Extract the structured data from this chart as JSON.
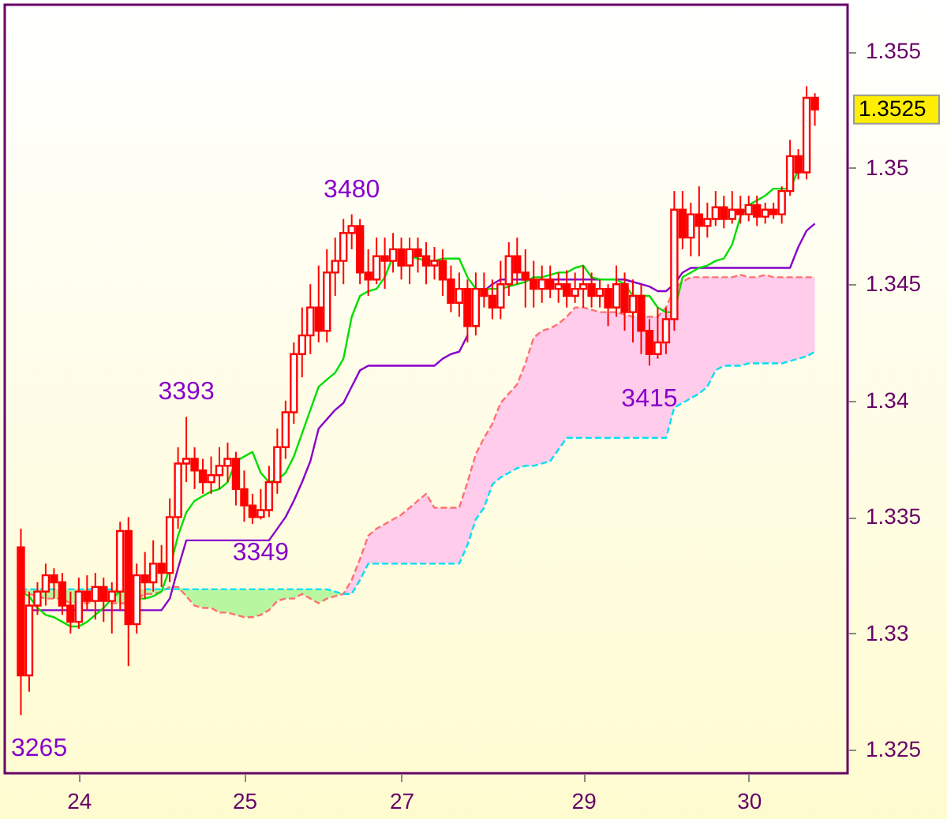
{
  "chart_data": {
    "type": "candlestick",
    "color": "#ff0000",
    "categories": [
      null,
      null,
      null,
      null,
      null,
      null,
      null,
      "24",
      null,
      null,
      null,
      null,
      null,
      null,
      null,
      null,
      null,
      null,
      null,
      null,
      null,
      null,
      null,
      null,
      null,
      null,
      null,
      "25",
      null,
      null,
      null,
      null,
      null,
      null,
      null,
      null,
      null,
      null,
      null,
      null,
      null,
      null,
      null,
      null,
      null,
      null,
      "27",
      null,
      null,
      null,
      null,
      null,
      null,
      null,
      null,
      null,
      null,
      null,
      null,
      null,
      null,
      null,
      null,
      null,
      null,
      null,
      null,
      null,
      "29",
      null,
      null,
      null,
      null,
      null,
      null,
      null,
      null,
      null,
      null,
      null,
      null,
      null,
      null,
      null,
      null,
      null,
      null,
      null,
      "30",
      null,
      null,
      null,
      null,
      null,
      null,
      null,
      null
    ],
    "ohlc": [
      [
        1.3337,
        1.3345,
        1.3265,
        1.3282
      ],
      [
        1.3282,
        1.3318,
        1.3275,
        1.3312
      ],
      [
        1.3312,
        1.3322,
        1.3308,
        1.3318
      ],
      [
        1.3318,
        1.333,
        1.3312,
        1.3325
      ],
      [
        1.3325,
        1.3328,
        1.3315,
        1.3322
      ],
      [
        1.3322,
        1.3326,
        1.3308,
        1.3312
      ],
      [
        1.3312,
        1.3318,
        1.33,
        1.3305
      ],
      [
        1.3305,
        1.3324,
        1.3302,
        1.3318
      ],
      [
        1.3318,
        1.3325,
        1.331,
        1.3314
      ],
      [
        1.3314,
        1.3326,
        1.3306,
        1.332
      ],
      [
        1.332,
        1.3324,
        1.3305,
        1.3314
      ],
      [
        1.3314,
        1.3322,
        1.33,
        1.3318
      ],
      [
        1.3318,
        1.3348,
        1.331,
        1.3344
      ],
      [
        1.3344,
        1.335,
        1.3286,
        1.3304
      ],
      [
        1.3304,
        1.333,
        1.33,
        1.3325
      ],
      [
        1.3325,
        1.3335,
        1.3315,
        1.3322
      ],
      [
        1.3322,
        1.334,
        1.3318,
        1.333
      ],
      [
        1.333,
        1.3338,
        1.332,
        1.3326
      ],
      [
        1.3326,
        1.3358,
        1.3322,
        1.335
      ],
      [
        1.335,
        1.338,
        1.3345,
        1.3373
      ],
      [
        1.3373,
        1.3393,
        1.3365,
        1.3375
      ],
      [
        1.3375,
        1.338,
        1.3362,
        1.337
      ],
      [
        1.337,
        1.3375,
        1.336,
        1.3365
      ],
      [
        1.3365,
        1.3376,
        1.336,
        1.3368
      ],
      [
        1.3368,
        1.338,
        1.3362,
        1.3372
      ],
      [
        1.3372,
        1.3382,
        1.3365,
        1.3375
      ],
      [
        1.3375,
        1.3378,
        1.3355,
        1.3362
      ],
      [
        1.3362,
        1.337,
        1.3348,
        1.3355
      ],
      [
        1.3355,
        1.336,
        1.3347,
        1.335
      ],
      [
        1.335,
        1.3362,
        1.3349,
        1.3353
      ],
      [
        1.3353,
        1.3372,
        1.335,
        1.3365
      ],
      [
        1.3365,
        1.3388,
        1.336,
        1.338
      ],
      [
        1.338,
        1.34,
        1.3375,
        1.3395
      ],
      [
        1.3395,
        1.3425,
        1.339,
        1.342
      ],
      [
        1.342,
        1.344,
        1.341,
        1.3428
      ],
      [
        1.3428,
        1.345,
        1.342,
        1.344
      ],
      [
        1.344,
        1.3458,
        1.3425,
        1.343
      ],
      [
        1.343,
        1.3465,
        1.3425,
        1.3455
      ],
      [
        1.3455,
        1.347,
        1.3445,
        1.346
      ],
      [
        1.346,
        1.3478,
        1.345,
        1.3472
      ],
      [
        1.3472,
        1.348,
        1.3465,
        1.3475
      ],
      [
        1.3475,
        1.3478,
        1.345,
        1.3455
      ],
      [
        1.3455,
        1.3465,
        1.3445,
        1.3452
      ],
      [
        1.3452,
        1.347,
        1.345,
        1.3462
      ],
      [
        1.3462,
        1.347,
        1.3448,
        1.346
      ],
      [
        1.346,
        1.3472,
        1.3455,
        1.3465
      ],
      [
        1.3465,
        1.347,
        1.3452,
        1.3458
      ],
      [
        1.3458,
        1.347,
        1.345,
        1.3465
      ],
      [
        1.3465,
        1.347,
        1.3455,
        1.3462
      ],
      [
        1.3462,
        1.3468,
        1.345,
        1.3458
      ],
      [
        1.3458,
        1.3466,
        1.3452,
        1.346
      ],
      [
        1.346,
        1.3465,
        1.3445,
        1.3452
      ],
      [
        1.3452,
        1.3458,
        1.3438,
        1.3442
      ],
      [
        1.3442,
        1.3455,
        1.3436,
        1.3448
      ],
      [
        1.3448,
        1.3452,
        1.3425,
        1.3432
      ],
      [
        1.3432,
        1.3455,
        1.3428,
        1.3448
      ],
      [
        1.3448,
        1.3455,
        1.344,
        1.3445
      ],
      [
        1.3445,
        1.3452,
        1.3435,
        1.344
      ],
      [
        1.344,
        1.346,
        1.3435,
        1.345
      ],
      [
        1.345,
        1.3468,
        1.3445,
        1.3462
      ],
      [
        1.3462,
        1.347,
        1.345,
        1.3455
      ],
      [
        1.3455,
        1.3465,
        1.344,
        1.3452
      ],
      [
        1.3452,
        1.346,
        1.344,
        1.3448
      ],
      [
        1.3448,
        1.3458,
        1.3442,
        1.3452
      ],
      [
        1.3452,
        1.3458,
        1.3444,
        1.3448
      ],
      [
        1.3448,
        1.3455,
        1.3442,
        1.345
      ],
      [
        1.345,
        1.3456,
        1.344,
        1.3445
      ],
      [
        1.3445,
        1.3455,
        1.3442,
        1.3448
      ],
      [
        1.3448,
        1.3458,
        1.344,
        1.345
      ],
      [
        1.345,
        1.3455,
        1.344,
        1.3445
      ],
      [
        1.3445,
        1.3452,
        1.344,
        1.3448
      ],
      [
        1.3448,
        1.345,
        1.3432,
        1.344
      ],
      [
        1.344,
        1.3458,
        1.3436,
        1.345
      ],
      [
        1.345,
        1.3455,
        1.343,
        1.3438
      ],
      [
        1.3438,
        1.3452,
        1.3425,
        1.3445
      ],
      [
        1.3445,
        1.345,
        1.342,
        1.343
      ],
      [
        1.343,
        1.3435,
        1.3415,
        1.342
      ],
      [
        1.342,
        1.344,
        1.3418,
        1.3425
      ],
      [
        1.3425,
        1.344,
        1.342,
        1.3435
      ],
      [
        1.3435,
        1.349,
        1.343,
        1.3482
      ],
      [
        1.3482,
        1.349,
        1.3465,
        1.347
      ],
      [
        1.347,
        1.3485,
        1.3462,
        1.348
      ],
      [
        1.348,
        1.3492,
        1.3462,
        1.3475
      ],
      [
        1.3475,
        1.3485,
        1.347,
        1.3478
      ],
      [
        1.3478,
        1.349,
        1.3475,
        1.3483
      ],
      [
        1.3483,
        1.3488,
        1.3474,
        1.3478
      ],
      [
        1.3478,
        1.349,
        1.3476,
        1.3482
      ],
      [
        1.3482,
        1.3488,
        1.3476,
        1.348
      ],
      [
        1.348,
        1.3488,
        1.3477,
        1.3484
      ],
      [
        1.3484,
        1.3488,
        1.3475,
        1.3479
      ],
      [
        1.3479,
        1.3485,
        1.3476,
        1.3482
      ],
      [
        1.3482,
        1.3485,
        1.3478,
        1.348
      ],
      [
        1.348,
        1.3492,
        1.3476,
        1.349
      ],
      [
        1.349,
        1.3512,
        1.3488,
        1.3505
      ],
      [
        1.3505,
        1.3508,
        1.3495,
        1.3498
      ],
      [
        1.3498,
        1.3535,
        1.3495,
        1.353
      ],
      [
        1.353,
        1.3532,
        1.3518,
        1.3525
      ]
    ],
    "series": [
      {
        "type": "line",
        "color": "#ff7070",
        "line_style": "dashed",
        "lower": [
          null,
          null,
          null,
          null,
          null,
          null,
          null,
          null,
          null,
          null,
          null,
          null,
          null,
          null,
          null,
          null,
          null,
          null,
          null,
          null,
          null,
          null,
          null,
          null,
          null,
          null,
          null,
          null,
          null,
          null,
          null,
          null,
          null,
          null,
          null,
          null,
          null,
          null,
          null,
          1.3317,
          1.3317,
          1.3323,
          1.333,
          1.333,
          1.333,
          1.333,
          1.333,
          1.333,
          1.333,
          1.333,
          1.333,
          1.333,
          1.333,
          1.333,
          1.3338,
          1.3349,
          1.3354,
          1.3364,
          1.3367,
          1.3369,
          1.3371,
          1.3372,
          1.3372,
          1.3373,
          1.3374,
          1.3379,
          1.3384,
          1.3384,
          1.3384,
          1.3384,
          1.3384,
          1.3384,
          1.3384,
          1.3384,
          1.3384,
          1.3384,
          1.3384,
          1.3384,
          1.3384,
          1.3397,
          1.3399,
          1.3401,
          1.3403,
          1.3406,
          1.3413,
          1.3415,
          1.3415,
          1.3415,
          1.3416,
          1.3416,
          1.3416,
          1.3416,
          1.3416,
          1.3417,
          1.3418,
          1.3419,
          1.3421
        ],
        "upper": [
          null,
          null,
          null,
          null,
          null,
          null,
          null,
          null,
          null,
          null,
          null,
          null,
          null,
          null,
          null,
          null,
          null,
          null,
          null,
          null,
          null,
          null,
          null,
          null,
          null,
          null,
          null,
          null,
          null,
          null,
          null,
          null,
          null,
          null,
          null,
          null,
          null,
          null,
          null,
          1.3317,
          1.3323,
          1.3332,
          1.3342,
          1.3345,
          1.3347,
          1.3349,
          1.3351,
          1.3354,
          1.3357,
          1.336,
          1.3354,
          1.3354,
          1.3354,
          1.3354,
          1.3365,
          1.3377,
          1.3384,
          1.339,
          1.3399,
          1.3403,
          1.3407,
          1.3416,
          1.3427,
          1.343,
          1.3431,
          1.3433,
          1.3436,
          1.344,
          1.344,
          1.3439,
          1.3438,
          1.3438,
          1.3438,
          1.3437,
          1.3436,
          1.3436,
          1.3436,
          1.3436,
          1.344,
          1.3448,
          1.3451,
          1.3453,
          1.3453,
          1.3453,
          1.3453,
          1.3453,
          1.3453,
          1.3454,
          1.3453,
          1.3453,
          1.3454,
          1.3453,
          1.3453,
          1.3453,
          1.3453,
          1.3453,
          1.3453
        ],
        "values": [
          1.3319,
          1.3317,
          1.3316,
          1.3315,
          1.3315,
          1.3315,
          1.3313,
          1.3313,
          1.3313,
          1.3314,
          1.3315,
          1.3313,
          1.3313,
          1.3313,
          1.3315,
          1.3317,
          1.3317,
          1.3318,
          1.332,
          1.332,
          1.3316,
          1.3312,
          1.3311,
          1.3311,
          1.3309,
          1.3309,
          1.3308,
          1.3307,
          1.3307,
          1.3308,
          1.331,
          1.3314,
          1.3315,
          1.3315,
          1.3317,
          1.3315,
          1.3313,
          1.3315,
          1.3316,
          1.3317,
          1.3323,
          1.3332,
          1.3342,
          1.3345,
          1.3347,
          1.3349,
          1.3351,
          1.3354,
          1.3357,
          1.336,
          1.3354,
          1.3354,
          1.3354,
          1.3354,
          1.3365,
          1.3377,
          1.3384,
          1.339,
          1.3399,
          1.3403,
          1.3407,
          1.3416,
          1.3427,
          1.343,
          1.3431,
          1.3433,
          1.3436,
          1.344,
          1.344,
          1.3439,
          1.3438,
          1.3438,
          1.3438,
          1.3437,
          1.3436,
          1.3436,
          1.3436,
          1.3436,
          1.344,
          1.3448,
          1.3451,
          1.3453,
          1.3453,
          1.3453,
          1.3453,
          1.3453,
          1.3453,
          1.3454,
          1.3453,
          1.3453,
          1.3454,
          1.3453,
          1.3453,
          1.3453,
          1.3453,
          1.3453,
          1.3453
        ]
      },
      {
        "type": "line",
        "color": "#00e0f0",
        "line_style": "dashed",
        "upper": [
          1.3319,
          1.3319,
          1.3319,
          1.3319,
          1.3319,
          1.3319,
          1.3319,
          1.3319,
          1.3319,
          1.3319,
          1.3319,
          1.3319,
          1.3319,
          1.3319,
          1.3319,
          1.3319,
          1.3319,
          1.3319,
          1.332,
          1.332,
          1.3319,
          1.3319,
          1.3319,
          1.3319,
          1.3319,
          1.3319,
          1.3319,
          1.3319,
          1.3319,
          1.3319,
          1.3319,
          1.3319,
          1.3319,
          1.3319,
          1.3319,
          1.3319,
          1.3319,
          1.3319,
          1.3318,
          1.3317,
          null,
          null,
          null,
          null,
          null,
          null,
          null,
          null,
          null,
          null,
          null,
          null,
          null,
          null,
          null,
          null,
          null,
          null,
          null,
          null,
          null,
          null,
          null,
          null,
          null,
          null,
          null,
          null,
          null,
          null,
          null,
          null,
          null,
          null,
          null,
          null,
          null,
          null,
          null,
          null,
          null,
          null,
          null,
          null,
          null,
          null,
          null,
          null,
          null,
          null,
          null,
          null,
          null,
          null,
          null,
          null,
          null
        ],
        "lower": [
          1.3319,
          1.3317,
          1.3316,
          1.3315,
          1.3315,
          1.3315,
          1.3313,
          1.3313,
          1.3313,
          1.3314,
          1.3315,
          1.3313,
          1.3313,
          1.3313,
          1.3315,
          1.3317,
          1.3317,
          1.3318,
          1.3319,
          1.3319,
          1.3316,
          1.3312,
          1.3311,
          1.3311,
          1.3309,
          1.3309,
          1.3308,
          1.3307,
          1.3307,
          1.3308,
          1.331,
          1.3314,
          1.3315,
          1.3315,
          1.3317,
          1.3315,
          1.3313,
          1.3315,
          1.3316,
          1.3317,
          null,
          null,
          null,
          null,
          null,
          null,
          null,
          null,
          null,
          null,
          null,
          null,
          null,
          null,
          null,
          null,
          null,
          null,
          null,
          null,
          null,
          null,
          null,
          null,
          null,
          null,
          null,
          null,
          null,
          null,
          null,
          null,
          null,
          null,
          null,
          null,
          null,
          null,
          null,
          null,
          null,
          null,
          null,
          null,
          null,
          null,
          null,
          null,
          null,
          null,
          null,
          null,
          null,
          null,
          null,
          null,
          null
        ],
        "values": [
          1.3319,
          1.3319,
          1.3319,
          1.3319,
          1.3319,
          1.3319,
          1.3319,
          1.3319,
          1.3319,
          1.3319,
          1.3319,
          1.3319,
          1.3319,
          null,
          null,
          1.3319,
          1.3319,
          1.3319,
          1.3319,
          1.3319,
          1.3319,
          1.3319,
          1.3319,
          1.3319,
          1.3319,
          1.3319,
          1.3319,
          1.3319,
          1.3319,
          1.3319,
          1.3319,
          1.3319,
          1.3319,
          1.3319,
          1.3319,
          1.3319,
          1.3319,
          1.3319,
          1.3318,
          1.3317,
          1.3317,
          1.3323,
          1.333,
          1.333,
          1.333,
          1.333,
          1.333,
          1.333,
          1.333,
          1.333,
          1.333,
          1.333,
          1.333,
          1.333,
          1.3338,
          1.3349,
          1.3354,
          1.3364,
          1.3367,
          1.3369,
          1.3371,
          1.3372,
          1.3372,
          1.3373,
          1.3374,
          1.3379,
          1.3384,
          1.3384,
          1.3384,
          1.3384,
          1.3384,
          1.3384,
          1.3384,
          1.3384,
          1.3384,
          1.3384,
          1.3384,
          1.3384,
          1.3384,
          1.3397,
          1.3399,
          1.3401,
          1.3403,
          1.3406,
          1.3413,
          1.3415,
          1.3415,
          1.3415,
          1.3416,
          1.3416,
          1.3416,
          1.3416,
          1.3416,
          1.3417,
          1.3418,
          1.3419,
          1.3421
        ]
      },
      {
        "type": "line",
        "color": "#8800cc",
        "line_style": "solid",
        "values": [
          null,
          1.331,
          1.331,
          1.331,
          1.331,
          1.331,
          1.331,
          1.331,
          1.331,
          1.331,
          1.331,
          1.331,
          1.331,
          1.331,
          1.331,
          1.331,
          1.331,
          1.331,
          1.3315,
          1.3328,
          1.334,
          1.334,
          1.334,
          1.334,
          1.334,
          1.334,
          1.334,
          1.334,
          1.334,
          1.334,
          1.334,
          1.3345,
          1.335,
          1.3357,
          1.3365,
          1.3374,
          1.3388,
          1.3392,
          1.3396,
          1.3399,
          1.3406,
          1.3413,
          1.3415,
          1.3415,
          1.3415,
          1.3415,
          1.3415,
          1.3415,
          1.3415,
          1.3415,
          1.3415,
          1.3418,
          1.342,
          1.3421,
          1.3428,
          null,
          1.3447,
          1.345,
          1.3452,
          1.3452,
          1.3452,
          1.3452,
          null,
          null,
          1.3452,
          1.3452,
          1.3452,
          1.3452,
          1.3452,
          1.3452,
          1.3452,
          null,
          1.3452,
          1.3452,
          1.3451,
          1.345,
          1.3449,
          1.3447,
          1.3447,
          1.345,
          1.3455,
          1.3457,
          1.3457,
          1.3457,
          1.3457,
          1.3457,
          1.3457,
          1.3457,
          1.3457,
          1.3457,
          1.3457,
          1.3457,
          1.3457,
          1.3457,
          1.3466,
          1.3473,
          1.3476
        ]
      },
      {
        "type": "line",
        "color": "#00dd00",
        "line_style": "solid",
        "values": [
          1.3318,
          1.3316,
          1.3311,
          1.3308,
          1.3307,
          1.3305,
          1.3303,
          1.3303,
          1.3305,
          1.3308,
          1.3311,
          1.3315,
          1.3318,
          null,
          1.3315,
          1.3315,
          1.3316,
          1.3318,
          1.3328,
          1.3342,
          1.3352,
          1.3357,
          1.3359,
          1.3361,
          1.3362,
          1.3365,
          1.3374,
          1.3376,
          1.3378,
          1.3369,
          1.3365,
          1.3366,
          1.3369,
          1.3376,
          1.3386,
          1.3396,
          1.3406,
          1.3409,
          1.3412,
          1.3418,
          1.3436,
          1.3445,
          1.3447,
          1.3448,
          1.3453,
          1.3462,
          null,
          1.3462,
          1.3461,
          1.346,
          1.346,
          1.3461,
          1.3461,
          1.3461,
          1.3453,
          1.3448,
          1.3448,
          1.3448,
          1.3448,
          1.3449,
          1.345,
          1.3451,
          1.3453,
          1.3453,
          1.3454,
          1.3455,
          1.3455,
          1.3457,
          1.3458,
          1.3453,
          1.3452,
          1.3452,
          1.3452,
          1.345,
          1.3445,
          1.3445,
          1.3445,
          1.344,
          1.3438,
          1.3438,
          1.3453,
          1.3455,
          1.3457,
          1.3458,
          1.346,
          1.3461,
          1.3467,
          1.3479,
          1.3484,
          1.3486,
          1.3488,
          1.3491,
          1.3491,
          1.3491,
          1.3499,
          null,
          null
        ]
      }
    ],
    "ylim": [
      1.324,
      1.357
    ],
    "yticks": [
      1.325,
      1.33,
      1.335,
      1.34,
      1.345,
      1.35,
      1.355
    ],
    "annotations": [
      "3265",
      {
        "text": "3393",
        "y": 1.3393
      },
      {
        "text": "3349",
        "y": 1.3349
      },
      {
        "text": "3480",
        "y": 1.348
      },
      {
        "text": "3415",
        "y": 1.3415
      },
      "1.3525"
    ]
  }
}
